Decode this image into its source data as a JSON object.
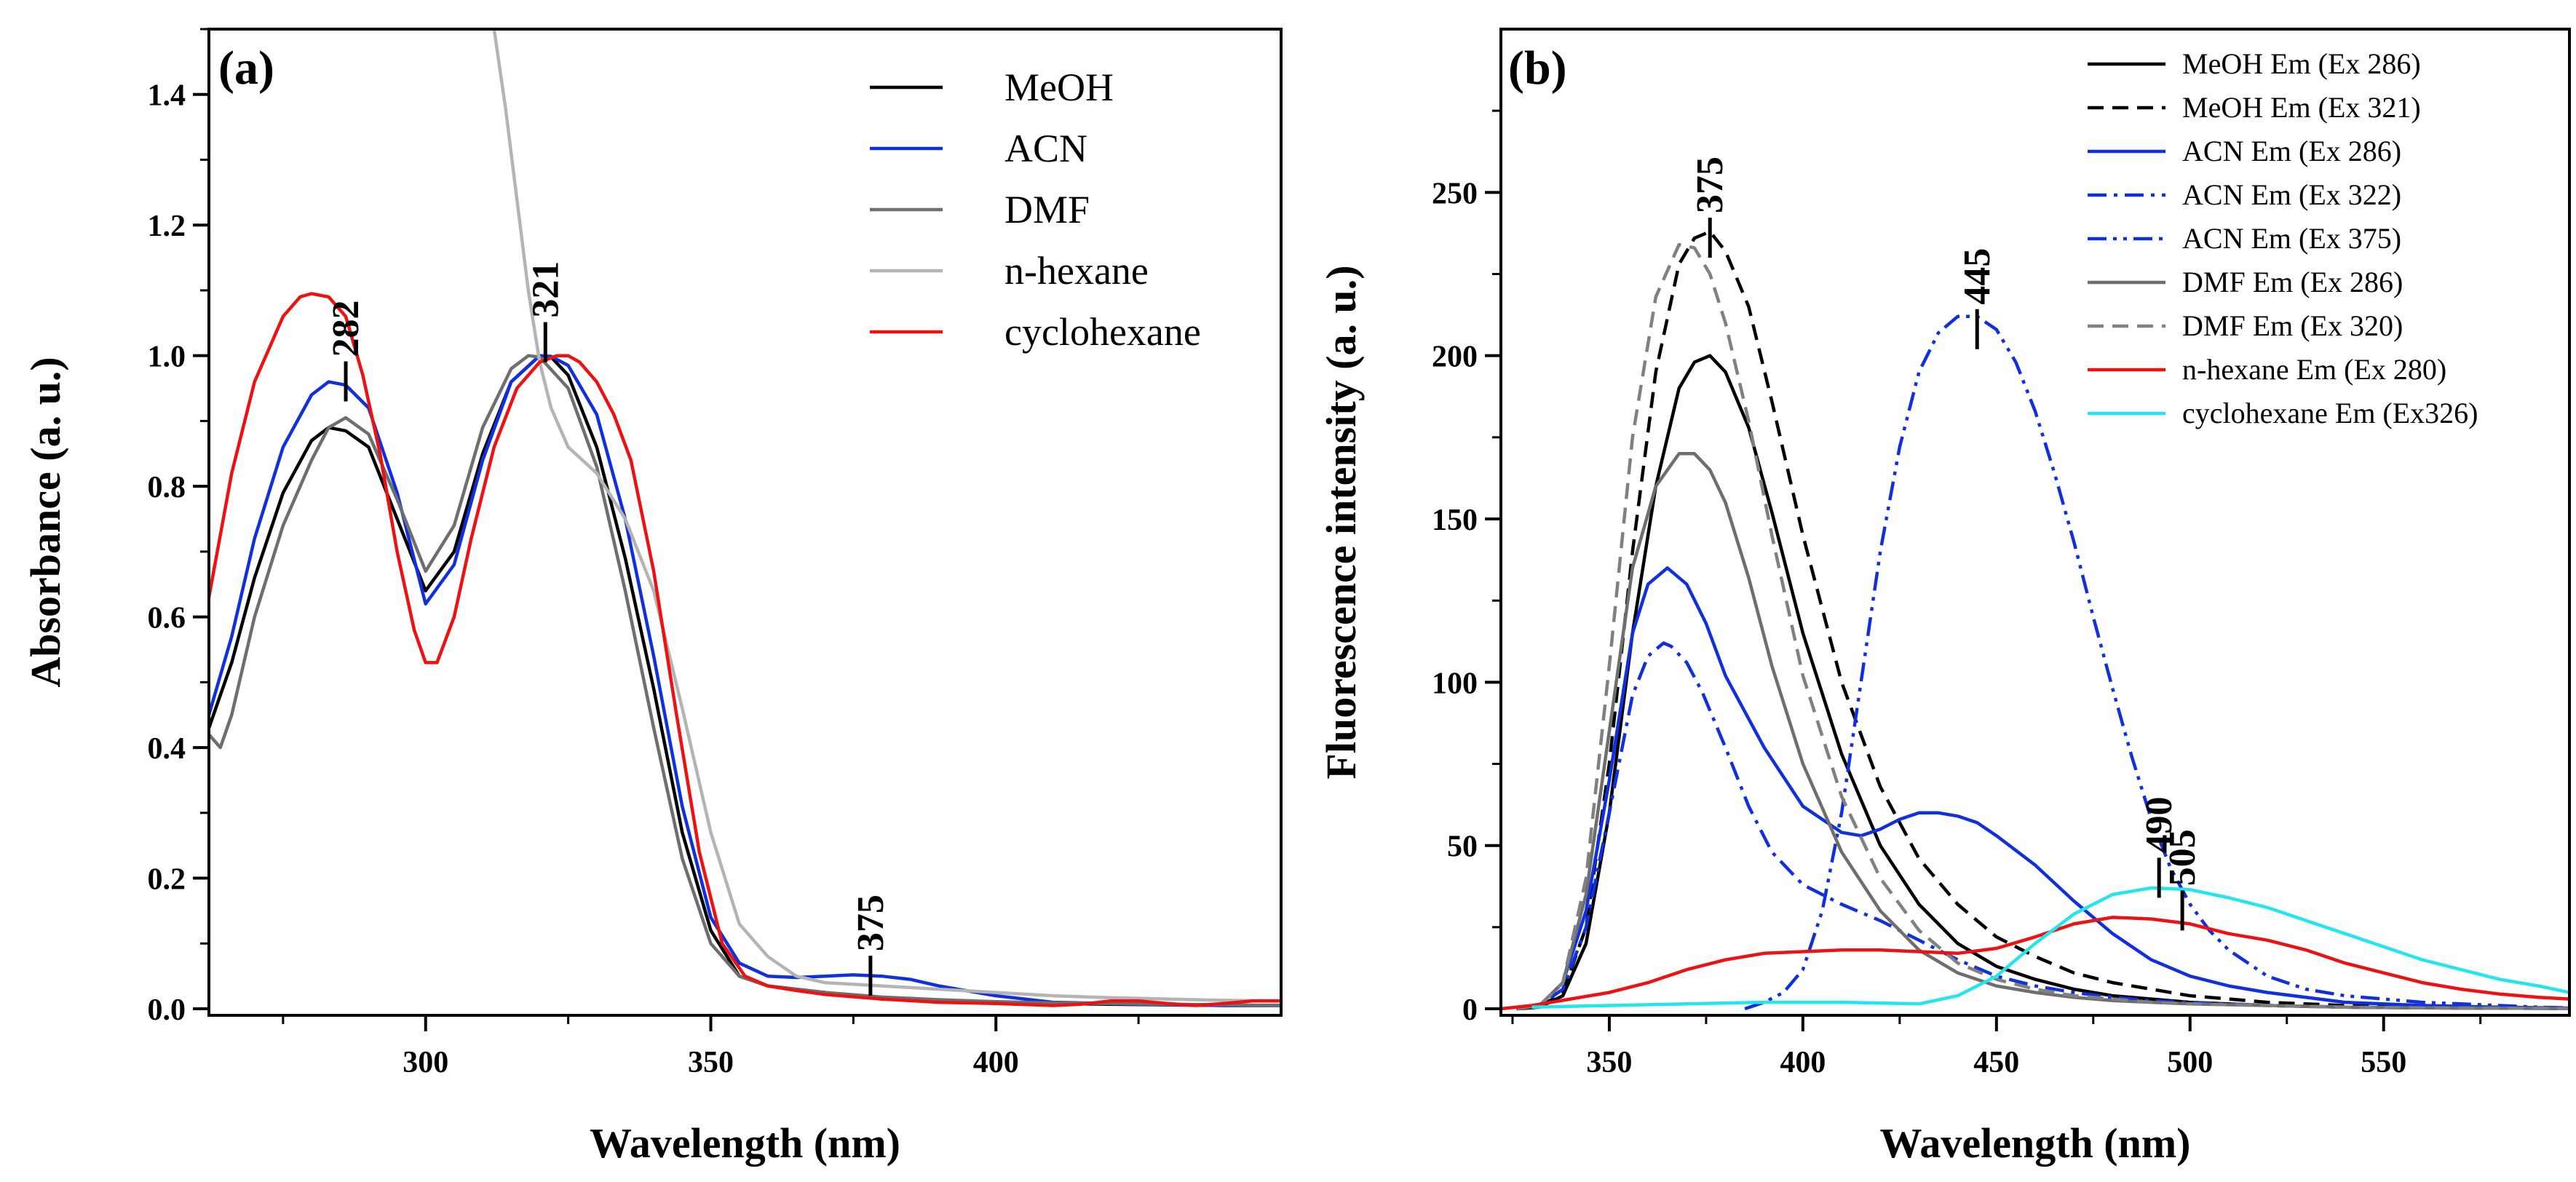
{
  "chart_data": [
    {
      "panel_label": "(a)",
      "type": "line",
      "xlabel": "Wavelength (nm)",
      "ylabel": "Absorbance (a. u.)",
      "xlim": [
        262,
        450
      ],
      "ylim": [
        -0.01,
        1.5
      ],
      "xticks": [
        300,
        350,
        400
      ],
      "yticks": [
        0.0,
        0.2,
        0.4,
        0.6,
        0.8,
        1.0,
        1.2,
        1.4
      ],
      "legend_position": "top-right",
      "series": [
        {
          "name": "MeOH",
          "color": "#000000",
          "dash": "solid",
          "x": [
            262,
            266,
            270,
            275,
            280,
            283,
            286,
            290,
            295,
            300,
            305,
            310,
            315,
            320,
            322,
            325,
            330,
            335,
            340,
            345,
            350,
            355,
            360,
            365,
            370,
            375,
            380,
            390,
            400,
            410,
            420,
            430,
            440,
            450
          ],
          "y": [
            0.43,
            0.53,
            0.66,
            0.79,
            0.87,
            0.89,
            0.885,
            0.86,
            0.75,
            0.64,
            0.7,
            0.85,
            0.96,
            1.0,
            0.998,
            0.97,
            0.86,
            0.69,
            0.49,
            0.27,
            0.12,
            0.05,
            0.035,
            0.03,
            0.025,
            0.02,
            0.015,
            0.012,
            0.01,
            0.008,
            0.007,
            0.006,
            0.005,
            0.005
          ]
        },
        {
          "name": "ACN",
          "color": "#1030e0",
          "dash": "solid",
          "x": [
            262,
            266,
            270,
            275,
            280,
            283,
            286,
            290,
            295,
            300,
            305,
            310,
            315,
            320,
            322,
            325,
            330,
            335,
            340,
            345,
            350,
            355,
            360,
            365,
            370,
            375,
            380,
            385,
            390,
            400,
            410,
            420,
            430,
            440,
            450
          ],
          "y": [
            0.45,
            0.57,
            0.72,
            0.86,
            0.94,
            0.96,
            0.955,
            0.92,
            0.79,
            0.62,
            0.68,
            0.84,
            0.96,
            1.0,
            0.999,
            0.985,
            0.91,
            0.75,
            0.54,
            0.31,
            0.14,
            0.07,
            0.05,
            0.048,
            0.05,
            0.052,
            0.05,
            0.045,
            0.035,
            0.02,
            0.01,
            0.008,
            0.006,
            0.005,
            0.005
          ]
        },
        {
          "name": "DMF",
          "color": "#6e6e6e",
          "dash": "solid",
          "x": [
            262,
            264,
            266,
            270,
            275,
            280,
            283,
            286,
            290,
            295,
            300,
            305,
            310,
            315,
            318,
            320,
            325,
            330,
            335,
            340,
            345,
            350,
            355,
            360,
            370,
            380,
            390,
            400,
            410,
            420,
            430,
            440,
            450
          ],
          "y": [
            0.42,
            0.4,
            0.45,
            0.6,
            0.74,
            0.84,
            0.89,
            0.905,
            0.88,
            0.78,
            0.67,
            0.74,
            0.89,
            0.98,
            1.0,
            0.998,
            0.95,
            0.83,
            0.64,
            0.43,
            0.23,
            0.1,
            0.05,
            0.035,
            0.025,
            0.018,
            0.014,
            0.011,
            0.009,
            0.008,
            0.007,
            0.006,
            0.005
          ]
        },
        {
          "name": "n-hexane",
          "color": "#b4b4b4",
          "dash": "solid",
          "x": [
            312,
            314,
            316,
            318,
            320,
            322,
            325,
            330,
            335,
            340,
            345,
            350,
            355,
            360,
            365,
            370,
            380,
            390,
            400,
            410,
            420,
            430,
            440,
            450
          ],
          "y": [
            1.5,
            1.38,
            1.24,
            1.1,
            0.99,
            0.92,
            0.86,
            0.82,
            0.75,
            0.64,
            0.46,
            0.27,
            0.13,
            0.08,
            0.05,
            0.04,
            0.035,
            0.03,
            0.025,
            0.02,
            0.017,
            0.015,
            0.013,
            0.012
          ]
        },
        {
          "name": "cyclohexane",
          "color": "#ee1111",
          "dash": "solid",
          "x": [
            262,
            266,
            270,
            275,
            278,
            280,
            283,
            286,
            289,
            292,
            295,
            298,
            300,
            302,
            305,
            308,
            312,
            316,
            320,
            323,
            325,
            327,
            330,
            333,
            336,
            340,
            344,
            348,
            352,
            356,
            360,
            365,
            370,
            380,
            390,
            400,
            410,
            415,
            420,
            425,
            430,
            435,
            440,
            445,
            450
          ],
          "y": [
            0.63,
            0.82,
            0.96,
            1.06,
            1.09,
            1.095,
            1.09,
            1.06,
            0.97,
            0.85,
            0.7,
            0.58,
            0.53,
            0.53,
            0.6,
            0.72,
            0.86,
            0.95,
            0.99,
            1.0,
            1.0,
            0.99,
            0.96,
            0.91,
            0.84,
            0.67,
            0.45,
            0.24,
            0.1,
            0.05,
            0.035,
            0.028,
            0.022,
            0.015,
            0.01,
            0.008,
            0.005,
            0.007,
            0.012,
            0.012,
            0.008,
            0.005,
            0.008,
            0.012,
            0.012
          ]
        }
      ],
      "annotations": [
        {
          "label": "282",
          "x": 286,
          "y_base": 0.93
        },
        {
          "label": "321",
          "x": 321,
          "y_base": 0.99
        },
        {
          "label": "375",
          "x": 378,
          "y_base": 0.02
        }
      ]
    },
    {
      "panel_label": "(b)",
      "type": "line",
      "xlabel": "Wavelength (nm)",
      "ylabel": "Fluorescence intensity (a. u.)",
      "xlim": [
        322,
        598
      ],
      "ylim": [
        -2,
        300
      ],
      "xticks": [
        350,
        400,
        450,
        500,
        550
      ],
      "yticks": [
        0,
        50,
        100,
        150,
        200,
        250
      ],
      "legend_position": "top-right",
      "series": [
        {
          "name": "MeOH Em (Ex 286)",
          "color": "#000000",
          "dash": "solid",
          "x": [
            326,
            332,
            338,
            344,
            350,
            356,
            362,
            368,
            372,
            376,
            380,
            386,
            392,
            400,
            410,
            420,
            430,
            440,
            450,
            460,
            470,
            480,
            490,
            500,
            520,
            540,
            560,
            580,
            598
          ],
          "y": [
            0,
            0.5,
            4,
            20,
            60,
            115,
            160,
            190,
            198,
            200,
            195,
            178,
            152,
            115,
            78,
            50,
            32,
            20,
            13,
            9,
            6,
            4,
            3,
            2,
            1,
            0.5,
            0.3,
            0.2,
            0.1
          ]
        },
        {
          "name": "MeOH Em (Ex 321)",
          "color": "#000000",
          "dash": "dashed",
          "x": [
            326,
            332,
            338,
            344,
            350,
            356,
            362,
            368,
            372,
            376,
            380,
            386,
            392,
            400,
            410,
            420,
            430,
            440,
            450,
            460,
            470,
            480,
            490,
            500,
            520,
            540,
            560,
            580,
            598
          ],
          "y": [
            0,
            0.5,
            5,
            25,
            75,
            140,
            195,
            228,
            236,
            238,
            232,
            215,
            186,
            145,
            100,
            68,
            46,
            32,
            22,
            16,
            11,
            8,
            6,
            4,
            2,
            1,
            0.5,
            0.3,
            0.2
          ]
        },
        {
          "name": "ACN Em (Ex 286)",
          "color": "#1030e0",
          "dash": "solid",
          "x": [
            326,
            332,
            338,
            344,
            350,
            356,
            360,
            365,
            370,
            375,
            380,
            390,
            400,
            410,
            415,
            420,
            425,
            430,
            435,
            440,
            445,
            450,
            460,
            470,
            480,
            490,
            500,
            510,
            520,
            540,
            560,
            580,
            598
          ],
          "y": [
            0,
            1,
            8,
            30,
            70,
            115,
            130,
            135,
            130,
            118,
            102,
            80,
            62,
            54,
            53,
            55,
            58,
            60,
            60,
            59,
            57,
            53,
            44,
            33,
            23,
            15,
            10,
            7,
            5,
            2,
            1,
            0.5,
            0.2
          ]
        },
        {
          "name": "ACN Em (Ex 322)",
          "color": "#1030e0",
          "dash": "dashdot",
          "x": [
            326,
            332,
            338,
            344,
            350,
            356,
            360,
            364,
            366,
            370,
            374,
            380,
            386,
            392,
            400,
            410,
            420,
            430,
            440,
            450,
            460,
            470,
            480,
            490,
            500,
            520,
            540,
            560,
            580,
            598
          ],
          "y": [
            0,
            1,
            6,
            25,
            60,
            96,
            108,
            112,
            111,
            106,
            97,
            80,
            62,
            48,
            38,
            32,
            27,
            21,
            15,
            10,
            7,
            5,
            3.5,
            2.5,
            2,
            1,
            0.5,
            0.3,
            0.2,
            0.1
          ]
        },
        {
          "name": "ACN Em (Ex 375)",
          "color": "#1030e0",
          "dash": "dashdotdot",
          "x": [
            385,
            390,
            395,
            400,
            405,
            410,
            415,
            420,
            425,
            430,
            435,
            440,
            445,
            450,
            455,
            460,
            465,
            470,
            475,
            480,
            485,
            490,
            495,
            500,
            505,
            510,
            520,
            530,
            540,
            550,
            560,
            570,
            580,
            590,
            598
          ],
          "y": [
            0,
            2,
            5,
            12,
            30,
            60,
            100,
            140,
            172,
            195,
            207,
            212,
            212,
            208,
            198,
            183,
            164,
            143,
            120,
            98,
            77,
            58,
            43,
            32,
            24,
            18,
            10,
            6,
            4,
            3,
            2,
            1.5,
            1,
            0.5,
            0.3
          ]
        },
        {
          "name": "DMF Em (Ex 286)",
          "color": "#6e6e6e",
          "dash": "solid",
          "x": [
            326,
            332,
            338,
            344,
            350,
            356,
            362,
            368,
            372,
            376,
            380,
            386,
            392,
            400,
            410,
            420,
            430,
            440,
            450,
            460,
            470,
            480,
            490,
            500,
            520,
            540,
            560,
            580,
            598
          ],
          "y": [
            0,
            1,
            8,
            35,
            85,
            135,
            160,
            170,
            170,
            165,
            155,
            132,
            105,
            75,
            48,
            30,
            18,
            11,
            7,
            5,
            3.5,
            2.5,
            2,
            1.5,
            1,
            0.5,
            0.3,
            0.2,
            0.1
          ]
        },
        {
          "name": "DMF Em (Ex 320)",
          "color": "#808080",
          "dash": "dashed",
          "x": [
            326,
            332,
            338,
            344,
            350,
            356,
            362,
            368,
            372,
            376,
            380,
            386,
            392,
            400,
            410,
            420,
            430,
            440,
            450,
            460,
            470,
            480,
            490,
            500,
            520,
            540,
            560,
            580,
            598
          ],
          "y": [
            0,
            1,
            8,
            40,
            105,
            175,
            218,
            234,
            233,
            225,
            210,
            180,
            145,
            102,
            65,
            40,
            24,
            14,
            9,
            6,
            4,
            3,
            2,
            1.5,
            1,
            0.5,
            0.3,
            0.2,
            0.1
          ]
        },
        {
          "name": "n-hexane Em (Ex 280)",
          "color": "#ee1111",
          "dash": "solid",
          "x": [
            322,
            330,
            340,
            350,
            360,
            370,
            380,
            390,
            400,
            410,
            420,
            430,
            440,
            450,
            460,
            470,
            480,
            490,
            500,
            510,
            520,
            530,
            540,
            550,
            560,
            570,
            580,
            590,
            598
          ],
          "y": [
            0,
            1,
            3,
            5,
            8,
            12,
            15,
            17,
            17.5,
            18,
            18,
            17.5,
            17,
            18.5,
            22,
            26,
            28,
            27.5,
            26,
            23,
            21,
            18,
            14,
            11,
            8,
            6,
            4.5,
            3.5,
            3
          ]
        },
        {
          "name": "cyclohexane Em (Ex326)",
          "color": "#22e5ee",
          "dash": "solid",
          "x": [
            330,
            350,
            370,
            390,
            410,
            430,
            440,
            450,
            460,
            470,
            480,
            490,
            500,
            510,
            520,
            530,
            540,
            550,
            560,
            570,
            580,
            590,
            598
          ],
          "y": [
            0.5,
            1,
            1.5,
            2,
            2,
            1.5,
            4,
            10,
            20,
            29,
            35,
            37,
            36.5,
            34,
            31,
            27,
            23,
            19,
            15,
            12,
            9,
            7,
            5
          ]
        }
      ],
      "annotations": [
        {
          "label": "375",
          "x": 376,
          "y_base": 230
        },
        {
          "label": "445",
          "x": 445,
          "y_base": 202
        },
        {
          "label": "490",
          "x": 492,
          "y_base": 34
        },
        {
          "label": "505",
          "x": 498,
          "y_base": 24
        }
      ]
    }
  ]
}
